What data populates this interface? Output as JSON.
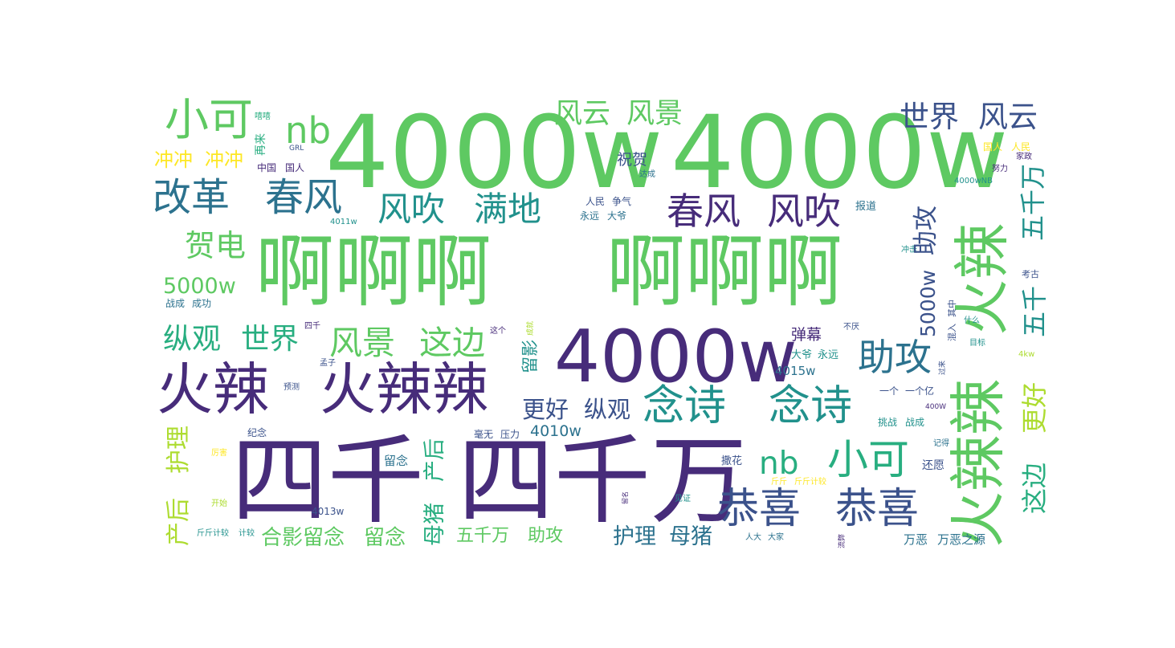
{
  "palette": {
    "dark_purple": "#472c7a",
    "indigo": "#3b528b",
    "steel_blue": "#2c728e",
    "teal": "#21918c",
    "sea_green": "#28ae80",
    "green": "#5ec962",
    "lime": "#addc30",
    "yellow": "#fde725"
  },
  "words": [
    {
      "text": "4000w",
      "color": "#5ec962"
    },
    {
      "text": "4000w",
      "color": "#5ec962"
    },
    {
      "text": "啊啊啊",
      "color": "#5ec962"
    },
    {
      "text": "啊啊啊",
      "color": "#5ec962"
    },
    {
      "text": "四千",
      "color": "#472c7a"
    },
    {
      "text": "四千万",
      "color": "#472c7a"
    },
    {
      "text": "4000w",
      "color": "#472c7a"
    },
    {
      "text": "火辣",
      "color": "#472c7a"
    },
    {
      "text": "火辣辣",
      "color": "#472c7a"
    },
    {
      "text": "火辣",
      "color": "#5ec962"
    },
    {
      "text": "火辣辣",
      "color": "#5ec962"
    },
    {
      "text": "小可",
      "color": "#5ec962"
    },
    {
      "text": "nb",
      "color": "#5ec962"
    },
    {
      "text": "改革",
      "color": "#2c728e"
    },
    {
      "text": "春风",
      "color": "#2c728e"
    },
    {
      "text": "风吹",
      "color": "#21918c"
    },
    {
      "text": "满地",
      "color": "#21918c"
    },
    {
      "text": "春风",
      "color": "#472c7a"
    },
    {
      "text": "风吹",
      "color": "#472c7a"
    },
    {
      "text": "风云",
      "color": "#5ec962"
    },
    {
      "text": "风景",
      "color": "#5ec962"
    },
    {
      "text": "世界",
      "color": "#3b528b"
    },
    {
      "text": "风云",
      "color": "#3b528b"
    },
    {
      "text": "冲冲",
      "color": "#fde725"
    },
    {
      "text": "冲冲",
      "color": "#fde725"
    },
    {
      "text": "贺电",
      "color": "#5ec962"
    },
    {
      "text": "5000w",
      "color": "#5ec962"
    },
    {
      "text": "纵观",
      "color": "#28ae80"
    },
    {
      "text": "世界",
      "color": "#28ae80"
    },
    {
      "text": "风景",
      "color": "#5ec962"
    },
    {
      "text": "这边",
      "color": "#5ec962"
    },
    {
      "text": "助攻",
      "color": "#2c728e"
    },
    {
      "text": "念诗",
      "color": "#21918c"
    },
    {
      "text": "念诗",
      "color": "#21918c"
    },
    {
      "text": "恭喜",
      "color": "#3b528b"
    },
    {
      "text": "恭喜",
      "color": "#3b528b"
    },
    {
      "text": "nb",
      "color": "#28ae80"
    },
    {
      "text": "小可",
      "color": "#28ae80"
    },
    {
      "text": "更好",
      "color": "#3b528b"
    },
    {
      "text": "纵观",
      "color": "#3b528b"
    },
    {
      "text": "4010w",
      "color": "#2c728e"
    },
    {
      "text": "合影留念",
      "color": "#5ec962"
    },
    {
      "text": "留念",
      "color": "#5ec962"
    },
    {
      "text": "五千万",
      "color": "#5ec962"
    },
    {
      "text": "助攻",
      "color": "#5ec962"
    },
    {
      "text": "护理",
      "color": "#2c728e"
    },
    {
      "text": "母猪",
      "color": "#2c728e"
    },
    {
      "text": "祝贺",
      "color": "#3b528b"
    },
    {
      "text": "弹幕",
      "color": "#472c7a"
    },
    {
      "text": "4015w",
      "color": "#2c728e"
    },
    {
      "text": "大爷",
      "color": "#21918c"
    },
    {
      "text": "永远",
      "color": "#21918c"
    },
    {
      "text": "撒花",
      "color": "#3b528b"
    },
    {
      "text": "还愿",
      "color": "#3b528b"
    },
    {
      "text": "万恶",
      "color": "#2c728e"
    },
    {
      "text": "万恶之源",
      "color": "#2c728e"
    },
    {
      "text": "战成",
      "color": "#2c728e"
    },
    {
      "text": "成功",
      "color": "#2c728e"
    },
    {
      "text": "嘻嘻",
      "color": "#28ae80"
    },
    {
      "text": "GRL",
      "color": "#3b528b"
    },
    {
      "text": "中国",
      "color": "#472c7a"
    },
    {
      "text": "国人",
      "color": "#472c7a"
    },
    {
      "text": "国人",
      "color": "#fde725"
    },
    {
      "text": "人民",
      "color": "#fde725"
    },
    {
      "text": "家政",
      "color": "#472c7a"
    },
    {
      "text": "努力",
      "color": "#472c7a"
    },
    {
      "text": "达成",
      "color": "#2c728e"
    },
    {
      "text": "4000wNB",
      "color": "#21918c"
    },
    {
      "text": "人民",
      "color": "#3b528b"
    },
    {
      "text": "争气",
      "color": "#3b528b"
    },
    {
      "text": "永远",
      "color": "#2c728e"
    },
    {
      "text": "大爷",
      "color": "#2c728e"
    },
    {
      "text": "报道",
      "color": "#2c728e"
    },
    {
      "text": "4011w",
      "color": "#21918c"
    },
    {
      "text": "冲击",
      "color": "#21918c"
    },
    {
      "text": "考古",
      "color": "#3b528b"
    },
    {
      "text": "四千",
      "color": "#472c7a"
    },
    {
      "text": "这个",
      "color": "#472c7a"
    },
    {
      "text": "不厌",
      "color": "#3b528b"
    },
    {
      "text": "什么",
      "color": "#21918c"
    },
    {
      "text": "目标",
      "color": "#21918c"
    },
    {
      "text": "4kw",
      "color": "#addc30"
    },
    {
      "text": "孟子",
      "color": "#3b528b"
    },
    {
      "text": "预测",
      "color": "#3b528b"
    },
    {
      "text": "一个",
      "color": "#3b528b"
    },
    {
      "text": "一个亿",
      "color": "#3b528b"
    },
    {
      "text": "400W",
      "color": "#472c7a"
    },
    {
      "text": "挑战",
      "color": "#21918c"
    },
    {
      "text": "战成",
      "color": "#21918c"
    },
    {
      "text": "纪念",
      "color": "#3b528b"
    },
    {
      "text": "毫无",
      "color": "#3b528b"
    },
    {
      "text": "压力",
      "color": "#3b528b"
    },
    {
      "text": "记得",
      "color": "#2c728e"
    },
    {
      "text": "厉害",
      "color": "#fde725"
    },
    {
      "text": "留念",
      "color": "#2c728e"
    },
    {
      "text": "斤斤",
      "color": "#fde725"
    },
    {
      "text": "斤斤计较",
      "color": "#fde725"
    },
    {
      "text": "开始",
      "color": "#addc30"
    },
    {
      "text": "留名",
      "color": "#472c7a"
    },
    {
      "text": "见证",
      "color": "#21918c"
    },
    {
      "text": "4013w",
      "color": "#3b528b"
    },
    {
      "text": "斤斤计较",
      "color": "#21918c"
    },
    {
      "text": "计较",
      "color": "#21918c"
    },
    {
      "text": "人大",
      "color": "#2c728e"
    },
    {
      "text": "大家",
      "color": "#2c728e"
    },
    {
      "text": "流弊",
      "color": "#472c7a"
    },
    {
      "text": "再来",
      "color": "#28ae80"
    },
    {
      "text": "留影",
      "color": "#21918c"
    },
    {
      "text": "母猪",
      "color": "#28ae80"
    },
    {
      "text": "产后",
      "color": "#28ae80"
    },
    {
      "text": "产后",
      "color": "#addc30"
    },
    {
      "text": "护理",
      "color": "#addc30"
    },
    {
      "text": "助攻",
      "color": "#3b528b"
    },
    {
      "text": "5000w",
      "color": "#3b528b"
    },
    {
      "text": "这边",
      "color": "#28ae80"
    },
    {
      "text": "更好",
      "color": "#addc30"
    },
    {
      "text": "五千",
      "color": "#21918c"
    },
    {
      "text": "五千万",
      "color": "#21918c"
    },
    {
      "text": "混入",
      "color": "#3b528b"
    },
    {
      "text": "其中",
      "color": "#3b528b"
    },
    {
      "text": "过来",
      "color": "#3b528b"
    },
    {
      "text": "成就",
      "color": "#addc30"
    }
  ]
}
